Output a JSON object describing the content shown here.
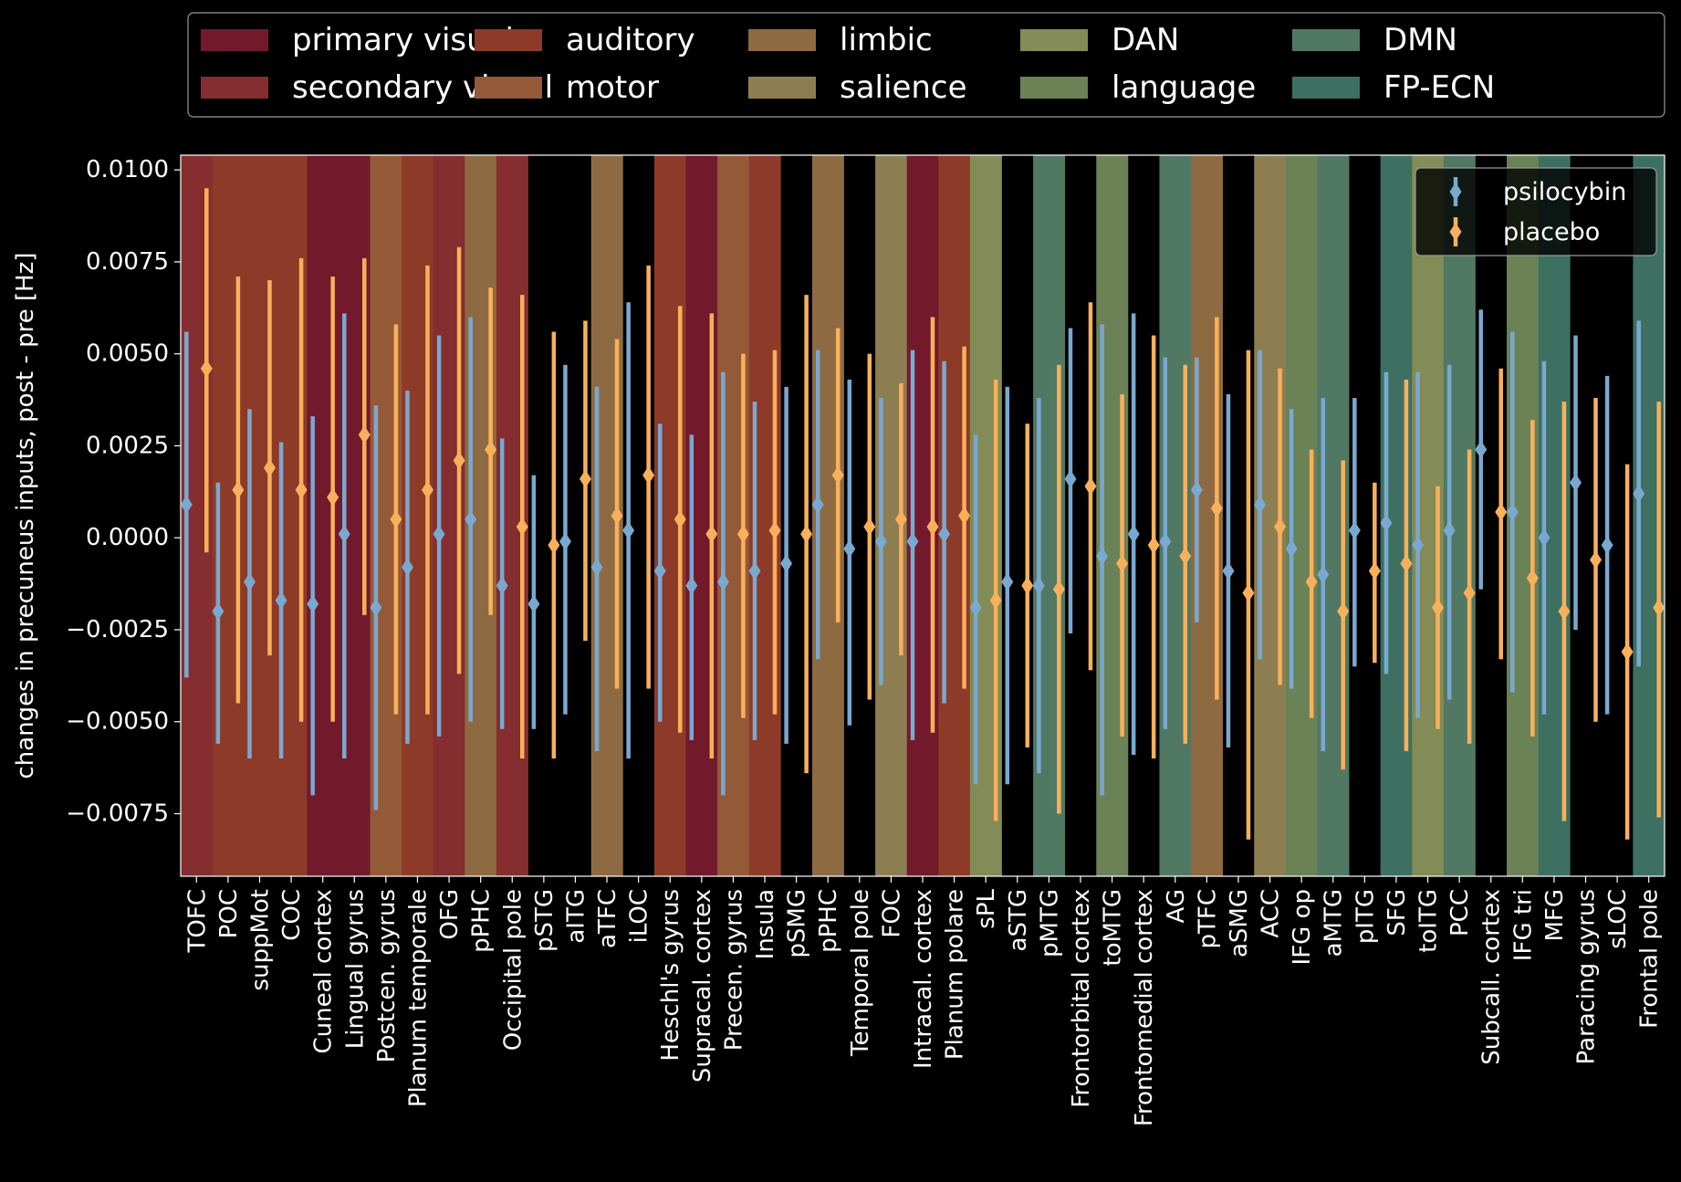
{
  "chart_data": {
    "type": "errorbar",
    "ylabel": "changes in precuneus inputs, post - pre [Hz]",
    "xlabel": "",
    "title": "",
    "ylim": [
      -0.0092,
      0.0104
    ],
    "yticks": [
      {
        "value": 0.01,
        "label": "0.0100"
      },
      {
        "value": 0.0075,
        "label": "0.0075"
      },
      {
        "value": 0.005,
        "label": "0.0050"
      },
      {
        "value": 0.0025,
        "label": "0.0025"
      },
      {
        "value": 0.0,
        "label": "0.0000"
      },
      {
        "value": -0.0025,
        "label": "−0.0025"
      },
      {
        "value": -0.005,
        "label": "−0.0050"
      },
      {
        "value": -0.0075,
        "label": "−0.0075"
      }
    ],
    "grid": false,
    "background": "#000000",
    "networks": [
      {
        "key": "pv",
        "name": "primary visual",
        "color": "#721a2c"
      },
      {
        "key": "sv",
        "name": "secondary visual",
        "color": "#852d2f"
      },
      {
        "key": "aud",
        "name": "auditory",
        "color": "#8d3a29"
      },
      {
        "key": "mot",
        "name": "motor",
        "color": "#945a38"
      },
      {
        "key": "lim",
        "name": "limbic",
        "color": "#8d6a41"
      },
      {
        "key": "sal",
        "name": "salience",
        "color": "#8d7e52"
      },
      {
        "key": "dan",
        "name": "DAN",
        "color": "#838b57"
      },
      {
        "key": "lan",
        "name": "language",
        "color": "#6b8257"
      },
      {
        "key": "dmn",
        "name": "DMN",
        "color": "#517862"
      },
      {
        "key": "fp",
        "name": "FP-ECN",
        "color": "#3d7060"
      }
    ],
    "network_legend_placement": "above plot, 5 columns",
    "series_legend_placement": "top-right",
    "series": [
      {
        "name": "psilocybin",
        "color": "#79a9d1",
        "marker": "diamond"
      },
      {
        "name": "placebo",
        "color": "#f9b05b",
        "marker": "diamond"
      }
    ],
    "regions": [
      {
        "label": "TOFC",
        "network": "sv",
        "psilocybin": [
          0.0009,
          -0.0038,
          0.0056
        ],
        "placebo": [
          0.0046,
          -0.0004,
          0.0095
        ]
      },
      {
        "label": "POC",
        "network": "aud",
        "psilocybin": [
          -0.002,
          -0.0056,
          0.0015
        ],
        "placebo": [
          0.0013,
          -0.0045,
          0.0071
        ]
      },
      {
        "label": "suppMot",
        "network": "aud",
        "psilocybin": [
          -0.0012,
          -0.006,
          0.0035
        ],
        "placebo": [
          0.0019,
          -0.0032,
          0.007
        ]
      },
      {
        "label": "COC",
        "network": "aud",
        "psilocybin": [
          -0.0017,
          -0.006,
          0.0026
        ],
        "placebo": [
          0.0013,
          -0.005,
          0.0076
        ]
      },
      {
        "label": "Cuneal cortex",
        "network": "pv",
        "psilocybin": [
          -0.0018,
          -0.007,
          0.0033
        ],
        "placebo": [
          0.0011,
          -0.005,
          0.0071
        ]
      },
      {
        "label": "Lingual gyrus",
        "network": "pv",
        "psilocybin": [
          0.0001,
          -0.006,
          0.0061
        ],
        "placebo": [
          0.0028,
          -0.0021,
          0.0076
        ]
      },
      {
        "label": "Postcen. gyrus",
        "network": "mot",
        "psilocybin": [
          -0.0019,
          -0.0074,
          0.0036
        ],
        "placebo": [
          0.0005,
          -0.0048,
          0.0058
        ]
      },
      {
        "label": "Planum temporale",
        "network": "aud",
        "psilocybin": [
          -0.0008,
          -0.0056,
          0.004
        ],
        "placebo": [
          0.0013,
          -0.0048,
          0.0074
        ]
      },
      {
        "label": "OFG",
        "network": "sv",
        "psilocybin": [
          0.0001,
          -0.0054,
          0.0055
        ],
        "placebo": [
          0.0021,
          -0.0037,
          0.0079
        ]
      },
      {
        "label": "pPHC",
        "network": "lim",
        "psilocybin": [
          0.0005,
          -0.005,
          0.006
        ],
        "placebo": [
          0.0024,
          -0.0021,
          0.0068
        ]
      },
      {
        "label": "Occipital pole",
        "network": "sv",
        "psilocybin": [
          -0.0013,
          -0.0052,
          0.0027
        ],
        "placebo": [
          0.0003,
          -0.006,
          0.0066
        ]
      },
      {
        "label": "pSTG",
        "network": "",
        "psilocybin": [
          -0.0018,
          -0.0052,
          0.0017
        ],
        "placebo": [
          -0.0002,
          -0.006,
          0.0056
        ]
      },
      {
        "label": "aITG",
        "network": "",
        "psilocybin": [
          -0.0001,
          -0.0048,
          0.0047
        ],
        "placebo": [
          0.0016,
          -0.0028,
          0.0059
        ]
      },
      {
        "label": "aTFC",
        "network": "lim",
        "psilocybin": [
          -0.0008,
          -0.0058,
          0.0041
        ],
        "placebo": [
          0.0006,
          -0.0041,
          0.0054
        ]
      },
      {
        "label": "iLOC",
        "network": "",
        "psilocybin": [
          0.0002,
          -0.006,
          0.0064
        ],
        "placebo": [
          0.0017,
          -0.0041,
          0.0074
        ]
      },
      {
        "label": "Heschl's gyrus",
        "network": "aud",
        "psilocybin": [
          -0.0009,
          -0.005,
          0.0031
        ],
        "placebo": [
          0.0005,
          -0.0053,
          0.0063
        ]
      },
      {
        "label": "Supracal. cortex",
        "network": "pv",
        "psilocybin": [
          -0.0013,
          -0.0055,
          0.0028
        ],
        "placebo": [
          0.0001,
          -0.006,
          0.0061
        ]
      },
      {
        "label": "Precen. gyrus",
        "network": "mot",
        "psilocybin": [
          -0.0012,
          -0.007,
          0.0045
        ],
        "placebo": [
          0.0001,
          -0.0049,
          0.005
        ]
      },
      {
        "label": "Insula",
        "network": "aud",
        "psilocybin": [
          -0.0009,
          -0.0055,
          0.0037
        ],
        "placebo": [
          0.0002,
          -0.0048,
          0.0051
        ]
      },
      {
        "label": "pSMG",
        "network": "",
        "psilocybin": [
          -0.0007,
          -0.0056,
          0.0041
        ],
        "placebo": [
          0.0001,
          -0.0064,
          0.0066
        ]
      },
      {
        "label": "pPHC",
        "network": "lim",
        "psilocybin": [
          0.0009,
          -0.0033,
          0.0051
        ],
        "placebo": [
          0.0017,
          -0.0023,
          0.0057
        ]
      },
      {
        "label": "Temporal pole",
        "network": "",
        "psilocybin": [
          -0.0003,
          -0.0051,
          0.0043
        ],
        "placebo": [
          0.0003,
          -0.0044,
          0.005
        ]
      },
      {
        "label": "FOC",
        "network": "sal",
        "psilocybin": [
          -0.0001,
          -0.004,
          0.0038
        ],
        "placebo": [
          0.0005,
          -0.0032,
          0.0042
        ]
      },
      {
        "label": "Intracal. cortex",
        "network": "pv",
        "psilocybin": [
          -0.0001,
          -0.0055,
          0.0051
        ],
        "placebo": [
          0.0003,
          -0.0053,
          0.006
        ]
      },
      {
        "label": "Planum polare",
        "network": "aud",
        "psilocybin": [
          0.0001,
          -0.0045,
          0.0048
        ],
        "placebo": [
          0.0006,
          -0.0041,
          0.0052
        ]
      },
      {
        "label": "sPL",
        "network": "dan",
        "psilocybin": [
          -0.0019,
          -0.0067,
          0.0028
        ],
        "placebo": [
          -0.0017,
          -0.0077,
          0.0043
        ]
      },
      {
        "label": "aSTG",
        "network": "",
        "psilocybin": [
          -0.0012,
          -0.0067,
          0.0041
        ],
        "placebo": [
          -0.0013,
          -0.0057,
          0.0031
        ]
      },
      {
        "label": "pMTG",
        "network": "dmn",
        "psilocybin": [
          -0.0013,
          -0.0064,
          0.0038
        ],
        "placebo": [
          -0.0014,
          -0.0075,
          0.0047
        ]
      },
      {
        "label": "Frontorbital cortex",
        "network": "",
        "psilocybin": [
          0.0016,
          -0.0026,
          0.0057
        ],
        "placebo": [
          0.0014,
          -0.0036,
          0.0064
        ]
      },
      {
        "label": "toMTG",
        "network": "lan",
        "psilocybin": [
          -0.0005,
          -0.007,
          0.0058
        ],
        "placebo": [
          -0.0007,
          -0.0054,
          0.0039
        ]
      },
      {
        "label": "Frontomedial cortex",
        "network": "",
        "psilocybin": [
          0.0001,
          -0.0059,
          0.0061
        ],
        "placebo": [
          -0.0002,
          -0.006,
          0.0055
        ]
      },
      {
        "label": "AG",
        "network": "dmn",
        "psilocybin": [
          -0.0001,
          -0.0052,
          0.0049
        ],
        "placebo": [
          -0.0005,
          -0.0056,
          0.0047
        ]
      },
      {
        "label": "pTFC",
        "network": "lim",
        "psilocybin": [
          0.0013,
          -0.0023,
          0.0049
        ],
        "placebo": [
          0.0008,
          -0.0044,
          0.006
        ]
      },
      {
        "label": "aSMG",
        "network": "",
        "psilocybin": [
          -0.0009,
          -0.0057,
          0.0039
        ],
        "placebo": [
          -0.0015,
          -0.0082,
          0.0051
        ]
      },
      {
        "label": "ACC",
        "network": "sal",
        "psilocybin": [
          0.0009,
          -0.0033,
          0.0051
        ],
        "placebo": [
          0.0003,
          -0.004,
          0.0046
        ]
      },
      {
        "label": "IFG op",
        "network": "lan",
        "psilocybin": [
          -0.0003,
          -0.0041,
          0.0035
        ],
        "placebo": [
          -0.0012,
          -0.0049,
          0.0024
        ]
      },
      {
        "label": "aMTG",
        "network": "dmn",
        "psilocybin": [
          -0.001,
          -0.0058,
          0.0038
        ],
        "placebo": [
          -0.002,
          -0.0063,
          0.0021
        ]
      },
      {
        "label": "pITG",
        "network": "",
        "psilocybin": [
          0.0002,
          -0.0035,
          0.0038
        ],
        "placebo": [
          -0.0009,
          -0.0034,
          0.0015
        ]
      },
      {
        "label": "SFG",
        "network": "fp",
        "psilocybin": [
          0.0004,
          -0.0037,
          0.0045
        ],
        "placebo": [
          -0.0007,
          -0.0058,
          0.0043
        ]
      },
      {
        "label": "toITG",
        "network": "dan",
        "psilocybin": [
          -0.0002,
          -0.0049,
          0.0045
        ],
        "placebo": [
          -0.0019,
          -0.0052,
          0.0014
        ]
      },
      {
        "label": "PCC",
        "network": "dmn",
        "psilocybin": [
          0.0002,
          -0.0044,
          0.0047
        ],
        "placebo": [
          -0.0015,
          -0.0056,
          0.0024
        ]
      },
      {
        "label": "Subcall. cortex",
        "network": "",
        "psilocybin": [
          0.0024,
          -0.0014,
          0.0062
        ],
        "placebo": [
          0.0007,
          -0.0033,
          0.0046
        ]
      },
      {
        "label": "IFG tri",
        "network": "lan",
        "psilocybin": [
          0.0007,
          -0.0042,
          0.0056
        ],
        "placebo": [
          -0.0011,
          -0.0054,
          0.0032
        ]
      },
      {
        "label": "MFG",
        "network": "fp",
        "psilocybin": [
          0.0,
          -0.0048,
          0.0048
        ],
        "placebo": [
          -0.002,
          -0.0077,
          0.0037
        ]
      },
      {
        "label": "Paracing gyrus",
        "network": "",
        "psilocybin": [
          0.0015,
          -0.0025,
          0.0055
        ],
        "placebo": [
          -0.0006,
          -0.005,
          0.0038
        ]
      },
      {
        "label": "sLOC",
        "network": "",
        "psilocybin": [
          -0.0002,
          -0.0048,
          0.0044
        ],
        "placebo": [
          -0.0031,
          -0.0082,
          0.002
        ]
      },
      {
        "label": "Frontal pole",
        "network": "fp",
        "psilocybin": [
          0.0012,
          -0.0035,
          0.0059
        ],
        "placebo": [
          -0.0019,
          -0.0076,
          0.0037
        ]
      }
    ]
  }
}
